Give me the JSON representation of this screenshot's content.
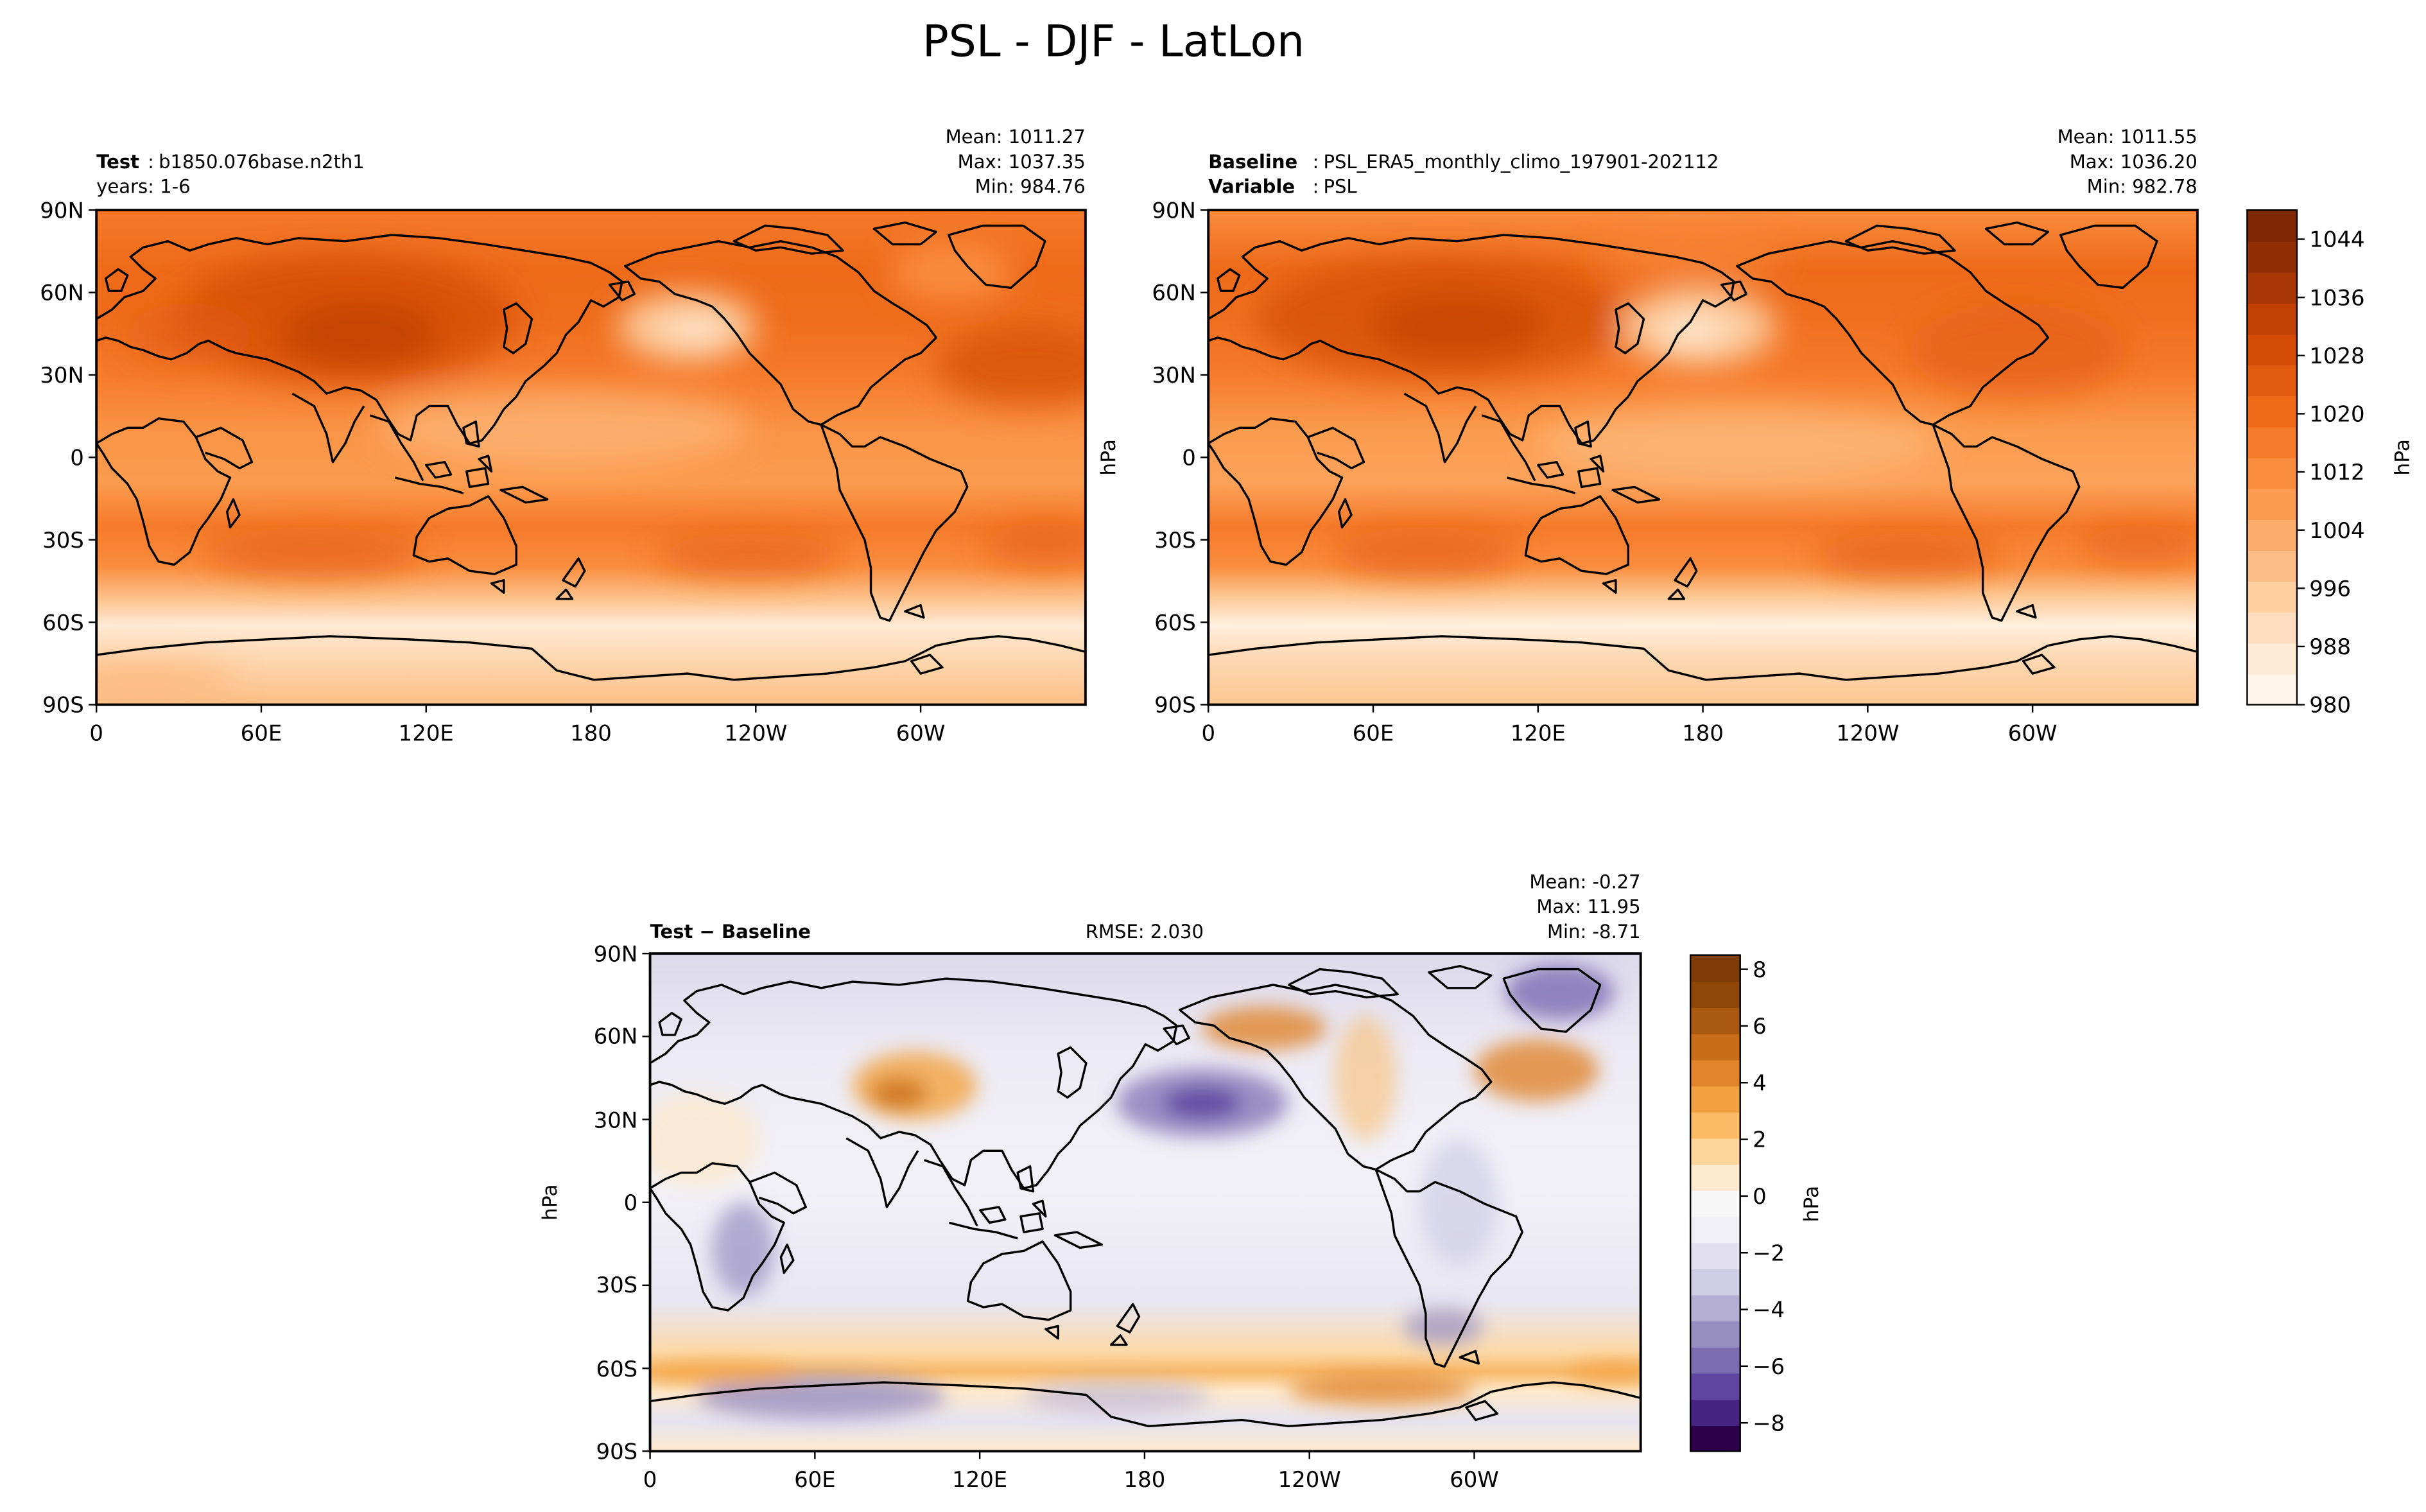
{
  "title": "PSL - DJF - LatLon",
  "panels": {
    "test": {
      "label_bold": "Test",
      "label_text": "b1850.076base.n2th1",
      "line2": "years: 1-6",
      "mean": "Mean: 1011.27",
      "max": "Max: 1037.35",
      "min": "Min: 984.76"
    },
    "baseline": {
      "label_bold": "Baseline",
      "label_text": "PSL_ERA5_monthly_climo_197901-202112",
      "line2_bold": "Variable",
      "line2_text": "PSL",
      "ylabel": "hPa",
      "mean": "Mean: 1011.55",
      "max": "Max: 1036.20",
      "min": "Min: 982.78"
    },
    "diff": {
      "label": "Test − Baseline",
      "rmse": "RMSE: 2.030",
      "ylabel": "hPa",
      "mean": "Mean: -0.27",
      "max": "Max: 11.95",
      "min": "Min: -8.71"
    }
  },
  "lat_ticks": [
    "90N",
    "60N",
    "30N",
    "0",
    "30S",
    "60S",
    "90S"
  ],
  "lon_ticks": [
    "0",
    "60E",
    "120E",
    "180",
    "120W",
    "60W"
  ],
  "colorbar_top": {
    "label": "hPa",
    "ticks": [
      "1044",
      "1036",
      "1028",
      "1020",
      "1012",
      "1004",
      "996",
      "988",
      "980"
    ],
    "range": [
      980,
      1048
    ],
    "colors": [
      "#fff5eb",
      "#feead5",
      "#fdddbf",
      "#fdcfa1",
      "#fdbe85",
      "#fdad6b",
      "#fd9b50",
      "#f98c3d",
      "#f57a2a",
      "#ee6a19",
      "#e25a0d",
      "#d34b05",
      "#bf4002",
      "#a63603",
      "#8f2f03",
      "#7f2704"
    ]
  },
  "colorbar_diff": {
    "label": "hPa",
    "ticks": [
      "8",
      "6",
      "4",
      "2",
      "0",
      "−2",
      "−4",
      "−6",
      "−8"
    ],
    "range": [
      -9,
      8.5
    ],
    "colors": [
      "#2d004b",
      "#472482",
      "#5e46a0",
      "#7b6bb1",
      "#978fc2",
      "#b4aed3",
      "#cfcce6",
      "#e2e0ef",
      "#f0eff6",
      "#f7f7f7",
      "#fde9cd",
      "#fdd499",
      "#fcba66",
      "#f2a140",
      "#e0852a",
      "#c86d18",
      "#a95910",
      "#8e4709",
      "#7f3b08"
    ]
  },
  "chart_data": [
    {
      "type": "heatmap",
      "title": "Test: b1850.076base.n2th1",
      "variable": "PSL",
      "season": "DJF",
      "units": "hPa",
      "x": "longitude 0 to 360",
      "y": "latitude -90 to 90",
      "stats": {
        "mean": 1011.27,
        "max": 1037.35,
        "min": 984.76
      },
      "colormap": "Oranges",
      "levels_range": [
        980,
        1048
      ]
    },
    {
      "type": "heatmap",
      "title": "Baseline: PSL_ERA5_monthly_climo_197901-202112",
      "variable": "PSL",
      "season": "DJF",
      "units": "hPa",
      "x": "longitude 0 to 360",
      "y": "latitude -90 to 90",
      "stats": {
        "mean": 1011.55,
        "max": 1036.2,
        "min": 982.78
      },
      "colormap": "Oranges",
      "levels_range": [
        980,
        1048
      ]
    },
    {
      "type": "heatmap",
      "title": "Test - Baseline",
      "units": "hPa",
      "x": "longitude 0 to 360",
      "y": "latitude -90 to 90",
      "stats": {
        "mean": -0.27,
        "max": 11.95,
        "min": -8.71,
        "rmse": 2.03
      },
      "colormap": "PuOr_r",
      "levels_range": [
        -9,
        8.5
      ]
    }
  ]
}
